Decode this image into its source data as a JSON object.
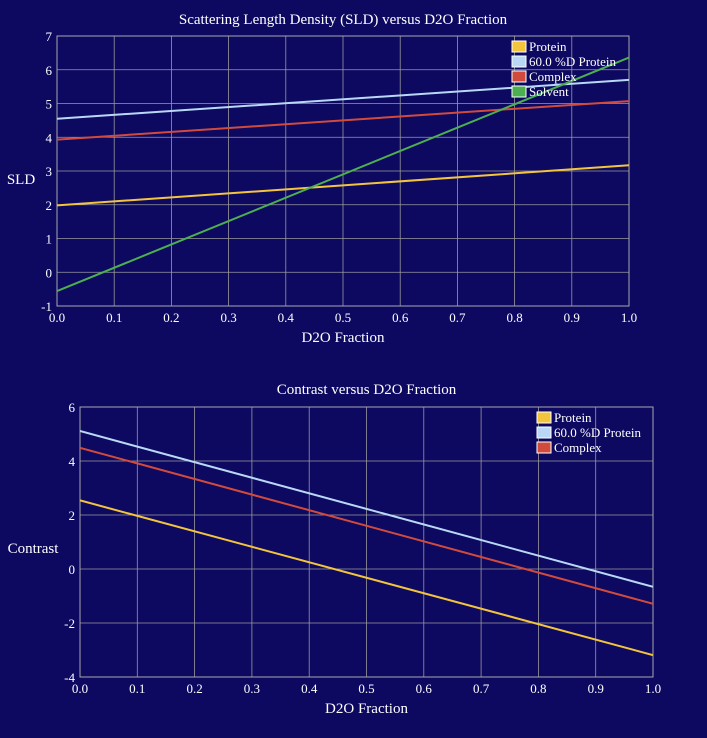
{
  "chart_data": [
    {
      "type": "line",
      "title": "Scattering Length Density (SLD) versus D2O Fraction",
      "xlabel": "D2O Fraction",
      "ylabel": "SLD",
      "xlim": [
        0,
        1
      ],
      "ylim": [
        -1,
        7
      ],
      "xticks": [
        "0.0",
        "0.1",
        "0.2",
        "0.3",
        "0.4",
        "0.5",
        "0.6",
        "0.7",
        "0.8",
        "0.9",
        "1.0"
      ],
      "yticks": [
        "-1",
        "0",
        "1",
        "2",
        "3",
        "4",
        "5",
        "6",
        "7"
      ],
      "grid": true,
      "legend": "top-right",
      "series": [
        {
          "name": "Protein",
          "color": "#f2c53d",
          "x": [
            0,
            1
          ],
          "y": [
            1.98,
            3.17
          ]
        },
        {
          "name": "60.0 %D Protein",
          "color": "#b8d8f5",
          "x": [
            0,
            1
          ],
          "y": [
            4.55,
            5.7
          ]
        },
        {
          "name": "Complex",
          "color": "#d14b3c",
          "x": [
            0,
            1
          ],
          "y": [
            3.93,
            5.07
          ]
        },
        {
          "name": "Solvent",
          "color": "#4caf50",
          "x": [
            0,
            1
          ],
          "y": [
            -0.56,
            6.36
          ]
        }
      ]
    },
    {
      "type": "line",
      "title": "Contrast versus D2O Fraction",
      "xlabel": "D2O Fraction",
      "ylabel": "Contrast",
      "xlim": [
        0,
        1
      ],
      "ylim": [
        -4,
        6
      ],
      "xticks": [
        "0.0",
        "0.1",
        "0.2",
        "0.3",
        "0.4",
        "0.5",
        "0.6",
        "0.7",
        "0.8",
        "0.9",
        "1.0"
      ],
      "yticks": [
        "-4",
        "-2",
        "0",
        "2",
        "4",
        "6"
      ],
      "grid": true,
      "legend": "top-right",
      "series": [
        {
          "name": "Protein",
          "color": "#f2c53d",
          "x": [
            0,
            1
          ],
          "y": [
            2.54,
            -3.19
          ]
        },
        {
          "name": "60.0 %D Protein",
          "color": "#b8d8f5",
          "x": [
            0,
            1
          ],
          "y": [
            5.11,
            -0.66
          ]
        },
        {
          "name": "Complex",
          "color": "#d14b3c",
          "x": [
            0,
            1
          ],
          "y": [
            4.49,
            -1.29
          ]
        }
      ]
    }
  ]
}
